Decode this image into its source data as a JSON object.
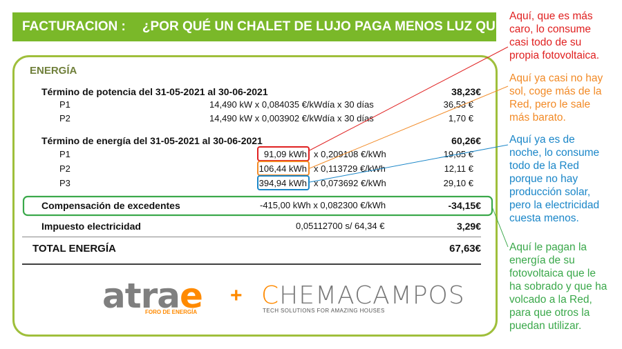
{
  "banner": {
    "left": "FACTURACION :",
    "right": "¿POR QUÉ UN CHALET DE LUJO PAGA MENOS LUZ QUE TÚ?"
  },
  "invoice": {
    "section_title": "ENERGÍA",
    "potencia": {
      "title": "Término de potencia del 31-05-2021 al 30-06-2021",
      "total": "38,23€",
      "rows": [
        {
          "label": "P1",
          "detail": "14,490 kW  x  0,084035 €/kWdía  x  30 días",
          "amount": "36,53 €"
        },
        {
          "label": "P2",
          "detail": "14,490 kW  x  0,003902 €/kWdía  x  30 días",
          "amount": "1,70 €"
        }
      ]
    },
    "energia": {
      "title": "Término de energía del 31-05-2021 al 30-06-2021",
      "total": "60,26€",
      "rows": [
        {
          "label": "P1",
          "kwh": "91,09 kWh",
          "price": "x  0,209108 €/kWh",
          "amount": "19,05 €"
        },
        {
          "label": "P2",
          "kwh": "106,44 kWh",
          "price": "x  0,113729 €/kWh",
          "amount": "12,11 €"
        },
        {
          "label": "P3",
          "kwh": "394,94 kWh",
          "price": "x  0,073692 €/kWh",
          "amount": "29,10 €"
        }
      ]
    },
    "compensacion": {
      "label": "Compensación de excedentes",
      "detail": "-415,00 kWh x 0,082300 €/kWh",
      "amount": "-34,15€"
    },
    "impuesto": {
      "label": "Impuesto electricidad",
      "detail": "0,05112700 s/ 64,34 €",
      "amount": "3,29€"
    },
    "total": {
      "label": "TOTAL ENERGÍA",
      "amount": "67,63€"
    }
  },
  "logos": {
    "atrae": {
      "word_main": "atra",
      "word_accent": "e",
      "subtitle": "FORO DE ENERGÍA"
    },
    "plus": "+",
    "chema": {
      "word_accent": "C",
      "word_main": "HEMACAMPOS",
      "subtitle": "TECH SOLUTIONS FOR AMAZING HOUSES"
    }
  },
  "annotations": {
    "red": "Aquí, que es más\ncaro, lo consume\ncasi todo de su\npropia fotovoltaica.",
    "orange": "Aquí ya casi no hay\nsol, coge más de la\nRed, pero le sale\nmás barato.",
    "blue": "Aquí ya es de\nnoche, lo consume\ntodo de la Red\nporque no hay\nproducción solar,\npero la electricidad\ncuesta menos.",
    "green": "Aquí le pagan la\nenergía de su\nfotovoltaica que le\nha sobrado y que ha\nvolcado a la Red,\npara que otros la\npuedan utilizar."
  },
  "colors": {
    "banner": "#7ab829",
    "card_border": "#9fbf3b",
    "red": "#e02020",
    "orange": "#f28a26",
    "blue": "#1a86c8",
    "green": "#3aa84a",
    "logo_orange": "#ff8a00",
    "logo_gray": "#7f7f7f"
  }
}
